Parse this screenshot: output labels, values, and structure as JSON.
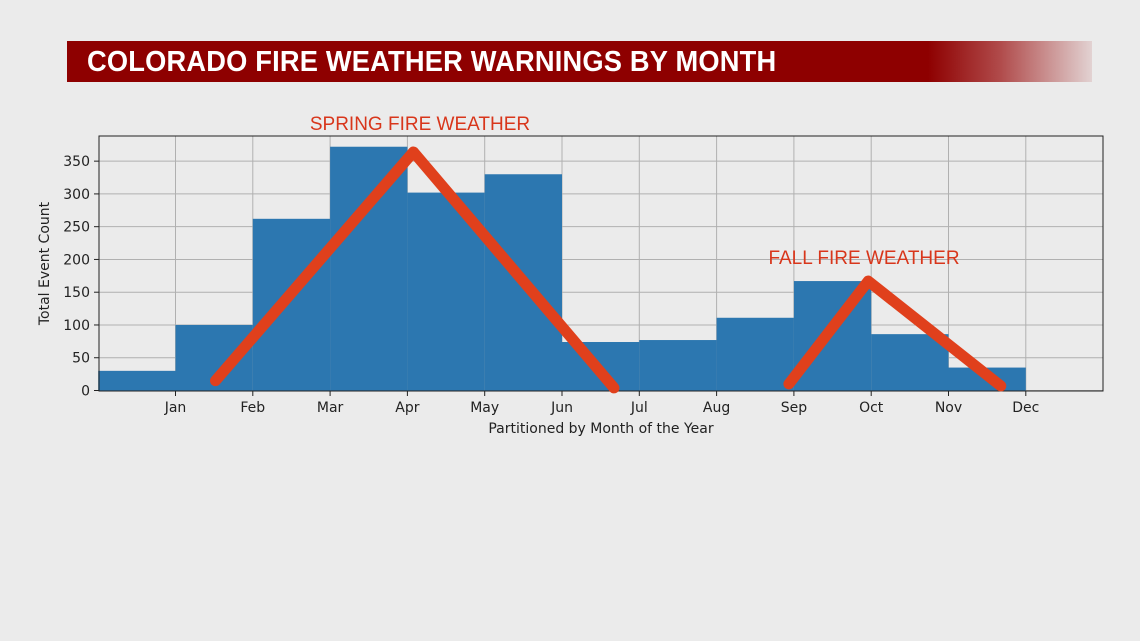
{
  "title": "COLORADO FIRE WEATHER WARNINGS BY MONTH",
  "chart_data": {
    "type": "bar",
    "categories": [
      "Jan",
      "Feb",
      "Mar",
      "Apr",
      "May",
      "Jun",
      "Jul",
      "Aug",
      "Sep",
      "Oct",
      "Nov",
      "Dec"
    ],
    "values": [
      30,
      100,
      262,
      372,
      302,
      330,
      74,
      77,
      111,
      167,
      86,
      35
    ],
    "xlabel": "Partitioned by Month of the Year",
    "ylabel": "Total Event Count",
    "ylim": [
      0,
      390
    ],
    "yticks": [
      0,
      50,
      100,
      150,
      200,
      250,
      300,
      350
    ],
    "grid": true,
    "bar_color": "#2c77b0",
    "annotations": [
      {
        "text": "SPRING FIRE WEATHER",
        "color": "#d8361b"
      },
      {
        "text": "FALL FIRE WEATHER",
        "color": "#d8361b"
      }
    ],
    "trend_color": "#e0401c"
  }
}
